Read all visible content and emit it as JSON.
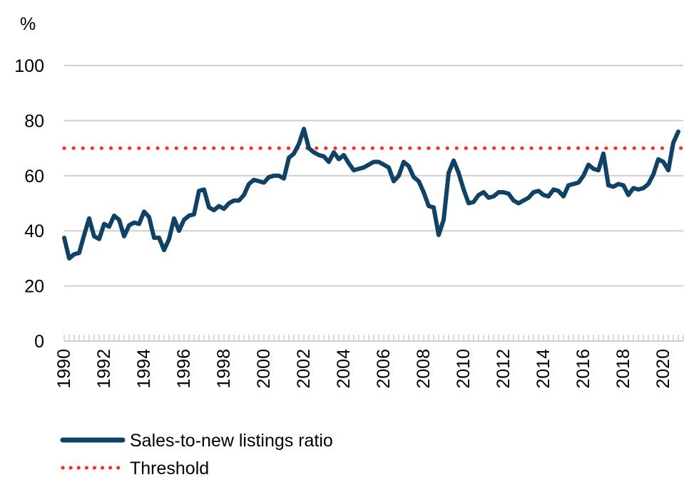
{
  "chart_data": {
    "type": "line",
    "y_unit_label": "%",
    "ylim": [
      0,
      100
    ],
    "y_ticks": [
      0,
      20,
      40,
      60,
      80,
      100
    ],
    "xlim": [
      1990,
      2021
    ],
    "x_tick_labels": [
      "1990",
      "1992",
      "1994",
      "1996",
      "1998",
      "2000",
      "2002",
      "2004",
      "2006",
      "2008",
      "2010",
      "2012",
      "2014",
      "2016",
      "2018",
      "2020"
    ],
    "grid": "horizontal",
    "legend_position": "bottom-left",
    "colors": {
      "ratio": "#0e4266",
      "threshold": "#ff2a1a",
      "grid": "#d0d0d0"
    },
    "series": [
      {
        "name": "Sales-to-new listings ratio",
        "style": "solid",
        "points": [
          [
            1990.0,
            37.5
          ],
          [
            1990.25,
            30.0
          ],
          [
            1990.5,
            31.5
          ],
          [
            1990.75,
            32.0
          ],
          [
            1991.0,
            38.5
          ],
          [
            1991.25,
            44.5
          ],
          [
            1991.5,
            38.0
          ],
          [
            1991.75,
            37.0
          ],
          [
            1992.0,
            42.5
          ],
          [
            1992.25,
            41.5
          ],
          [
            1992.5,
            45.5
          ],
          [
            1992.75,
            44.0
          ],
          [
            1993.0,
            38.0
          ],
          [
            1993.25,
            42.0
          ],
          [
            1993.5,
            43.0
          ],
          [
            1993.75,
            42.5
          ],
          [
            1994.0,
            47.0
          ],
          [
            1994.25,
            45.0
          ],
          [
            1994.5,
            37.5
          ],
          [
            1994.75,
            37.5
          ],
          [
            1995.0,
            33.0
          ],
          [
            1995.25,
            37.0
          ],
          [
            1995.5,
            44.5
          ],
          [
            1995.75,
            40.0
          ],
          [
            1996.0,
            44.0
          ],
          [
            1996.25,
            45.5
          ],
          [
            1996.5,
            46.0
          ],
          [
            1996.75,
            54.5
          ],
          [
            1997.0,
            55.0
          ],
          [
            1997.25,
            48.5
          ],
          [
            1997.5,
            47.5
          ],
          [
            1997.75,
            49.0
          ],
          [
            1998.0,
            48.0
          ],
          [
            1998.25,
            50.0
          ],
          [
            1998.5,
            51.0
          ],
          [
            1998.75,
            51.0
          ],
          [
            1999.0,
            53.0
          ],
          [
            1999.25,
            57.0
          ],
          [
            1999.5,
            58.5
          ],
          [
            1999.75,
            58.0
          ],
          [
            2000.0,
            57.5
          ],
          [
            2000.25,
            59.5
          ],
          [
            2000.5,
            60.0
          ],
          [
            2000.75,
            60.0
          ],
          [
            2001.0,
            59.0
          ],
          [
            2001.25,
            66.5
          ],
          [
            2001.5,
            68.0
          ],
          [
            2001.75,
            71.5
          ],
          [
            2002.0,
            77.0
          ],
          [
            2002.25,
            70.0
          ],
          [
            2002.5,
            68.5
          ],
          [
            2002.75,
            67.5
          ],
          [
            2003.0,
            67.0
          ],
          [
            2003.25,
            65.0
          ],
          [
            2003.5,
            68.5
          ],
          [
            2003.75,
            66.0
          ],
          [
            2004.0,
            67.5
          ],
          [
            2004.25,
            64.5
          ],
          [
            2004.5,
            62.0
          ],
          [
            2004.75,
            62.5
          ],
          [
            2005.0,
            63.0
          ],
          [
            2005.25,
            64.0
          ],
          [
            2005.5,
            65.0
          ],
          [
            2005.75,
            65.0
          ],
          [
            2006.0,
            64.0
          ],
          [
            2006.25,
            63.0
          ],
          [
            2006.5,
            58.0
          ],
          [
            2006.75,
            60.0
          ],
          [
            2007.0,
            65.0
          ],
          [
            2007.25,
            63.5
          ],
          [
            2007.5,
            59.5
          ],
          [
            2007.75,
            58.0
          ],
          [
            2008.0,
            54.0
          ],
          [
            2008.25,
            49.0
          ],
          [
            2008.5,
            48.5
          ],
          [
            2008.75,
            38.5
          ],
          [
            2009.0,
            44.0
          ],
          [
            2009.25,
            61.0
          ],
          [
            2009.5,
            65.5
          ],
          [
            2009.75,
            61.0
          ],
          [
            2010.0,
            55.0
          ],
          [
            2010.25,
            50.0
          ],
          [
            2010.5,
            50.5
          ],
          [
            2010.75,
            53.0
          ],
          [
            2011.0,
            54.0
          ],
          [
            2011.25,
            52.0
          ],
          [
            2011.5,
            52.5
          ],
          [
            2011.75,
            54.0
          ],
          [
            2012.0,
            54.0
          ],
          [
            2012.25,
            53.5
          ],
          [
            2012.5,
            51.0
          ],
          [
            2012.75,
            50.0
          ],
          [
            2013.0,
            51.0
          ],
          [
            2013.25,
            52.0
          ],
          [
            2013.5,
            54.0
          ],
          [
            2013.75,
            54.5
          ],
          [
            2014.0,
            53.0
          ],
          [
            2014.25,
            52.5
          ],
          [
            2014.5,
            55.0
          ],
          [
            2014.75,
            54.5
          ],
          [
            2015.0,
            52.5
          ],
          [
            2015.25,
            56.5
          ],
          [
            2015.5,
            57.0
          ],
          [
            2015.75,
            57.5
          ],
          [
            2016.0,
            60.0
          ],
          [
            2016.25,
            64.0
          ],
          [
            2016.5,
            62.5
          ],
          [
            2016.75,
            62.0
          ],
          [
            2017.0,
            68.0
          ],
          [
            2017.25,
            56.5
          ],
          [
            2017.5,
            56.0
          ],
          [
            2017.75,
            57.0
          ],
          [
            2018.0,
            56.5
          ],
          [
            2018.25,
            53.0
          ],
          [
            2018.5,
            55.5
          ],
          [
            2018.75,
            55.0
          ],
          [
            2019.0,
            55.5
          ],
          [
            2019.25,
            57.0
          ],
          [
            2019.5,
            60.5
          ],
          [
            2019.75,
            66.0
          ],
          [
            2020.0,
            65.0
          ],
          [
            2020.25,
            62.0
          ],
          [
            2020.5,
            72.0
          ],
          [
            2020.75,
            76.0
          ]
        ]
      },
      {
        "name": "Threshold",
        "style": "dotted",
        "points": [
          [
            1990.0,
            70.0
          ],
          [
            2021.0,
            70.0
          ]
        ]
      }
    ]
  }
}
